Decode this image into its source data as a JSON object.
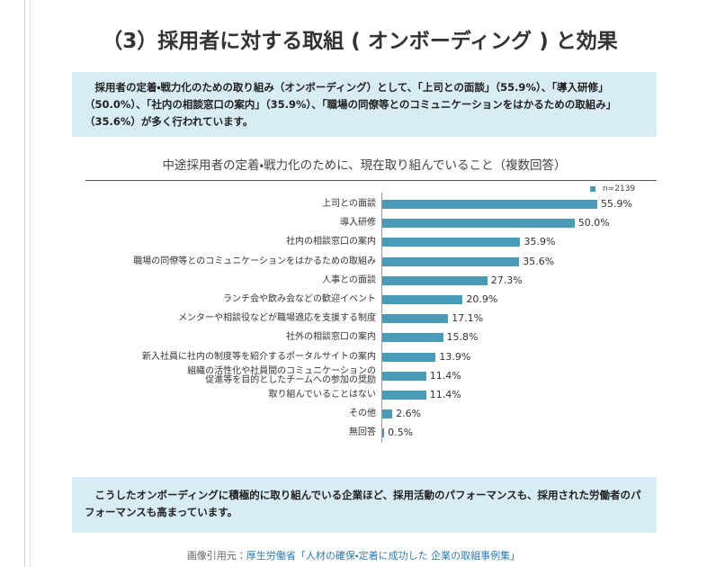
{
  "header": {
    "title": "（3）採用者に対する取組 ( オンボーディング ) と効果"
  },
  "summary": "採用者の定着・戦力化のための取り組み（オンボーディング）として、「上司との面談」（55.9%）、「導入研修」（50.0%）、「社内の相談窓口の案内」（35.9%）、「職場の同僚等とのコミュニケーションをはかるための取組み」（35.6%）が多く行われています。",
  "chart_data": {
    "type": "bar",
    "orientation": "horizontal",
    "title": "中途採用者の定着・戦力化のために、現在取り組んでいること（複数回答）",
    "categories": [
      "上司との面談",
      "導入研修",
      "社内の相談窓口の案内",
      "職場の同僚等とのコミュニケーションをはかるための取組み",
      "人事との面談",
      "ランチ会や飲み会などの歓迎イベント",
      "メンターや相談役などが職場適応を支援する制度",
      "社外の相談窓口の案内",
      "新入社員に社内の制度等を紹介するポータルサイトの案内",
      "組織の活性化や社員間のコミュニケーションの\n促進等を目的としたチームへの参加の奨励",
      "取り組んでいることはない",
      "その他",
      "無回答"
    ],
    "series": [
      {
        "name": "n=2139",
        "color": "#4a9bb8",
        "values": [
          55.9,
          50.0,
          35.9,
          35.6,
          27.3,
          20.9,
          17.1,
          15.8,
          13.9,
          11.4,
          11.4,
          2.6,
          0.5
        ],
        "value_labels": [
          "55.9%",
          "50.0%",
          "35.9%",
          "35.6%",
          "27.3%",
          "20.9%",
          "17.1%",
          "15.8%",
          "13.9%",
          "11.4%",
          "11.4%",
          "2.6%",
          "0.5%"
        ]
      }
    ]
  },
  "conclusion": "こうしたオンボーディングに積極的に取り組んでいる企業ほど、採用活動のパフォーマンスも、採用された労働者のパフォーマンスも高まっています。",
  "footer": {
    "source_label": "画像引用元：",
    "source_link": "厚生労働省「人材の確保・定着に成功した 企業の取組事例集」"
  }
}
